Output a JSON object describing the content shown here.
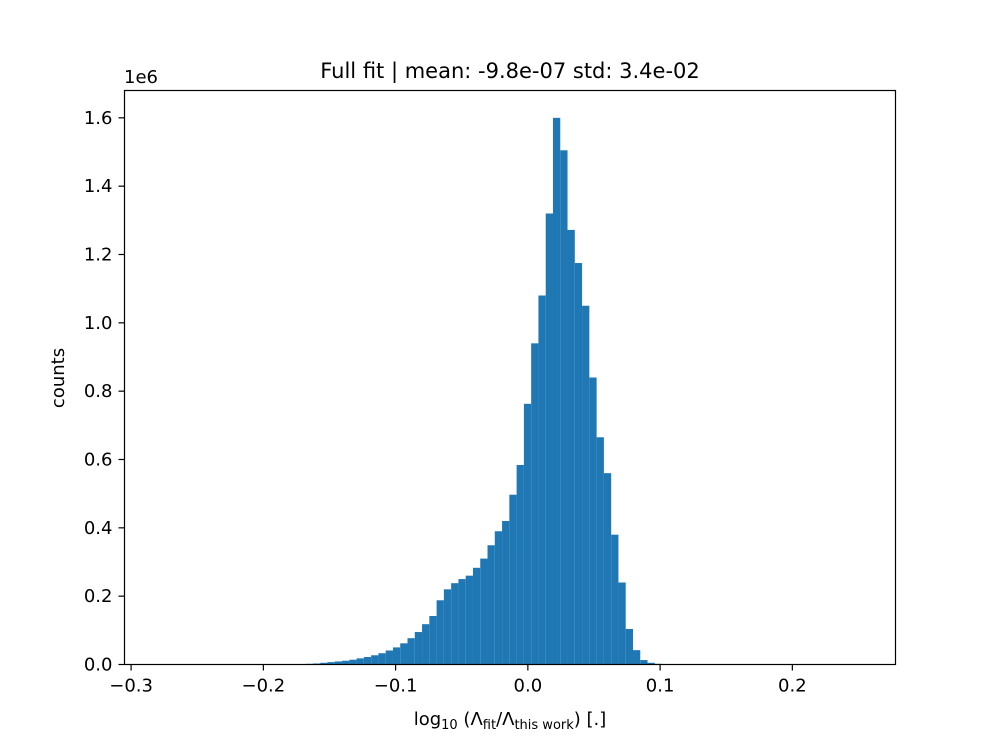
{
  "chart_data": {
    "type": "bar",
    "title": "Full fit | mean: -9.8e-07 std: 3.4e-02",
    "xlabel": {
      "base": "log",
      "base_sub": "10",
      "open": " (Λ",
      "sub1": "fit",
      "mid": "/Λ",
      "sub2": "this work",
      "close": ") [.]"
    },
    "ylabel": "counts",
    "y_multiplier": "1e6",
    "xlim": [
      -0.305,
      0.278
    ],
    "ylim": [
      0,
      1.68
    ],
    "xticks": [
      {
        "value": -0.3,
        "label": "−0.3"
      },
      {
        "value": -0.2,
        "label": "−0.2"
      },
      {
        "value": -0.1,
        "label": "−0.1"
      },
      {
        "value": 0.0,
        "label": "0.0"
      },
      {
        "value": 0.1,
        "label": "0.1"
      },
      {
        "value": 0.2,
        "label": "0.2"
      }
    ],
    "yticks": [
      {
        "value": 0.0,
        "label": "0.0"
      },
      {
        "value": 0.2,
        "label": "0.2"
      },
      {
        "value": 0.4,
        "label": "0.4"
      },
      {
        "value": 0.6,
        "label": "0.6"
      },
      {
        "value": 0.8,
        "label": "0.8"
      },
      {
        "value": 1.0,
        "label": "1.0"
      },
      {
        "value": 1.2,
        "label": "1.2"
      },
      {
        "value": 1.4,
        "label": "1.4"
      },
      {
        "value": 1.6,
        "label": "1.6"
      }
    ],
    "bar_color": "#1f77b4",
    "bin_edges_start": -0.3,
    "bin_width": 0.0055,
    "values": [
      0,
      0,
      0,
      0,
      0,
      0,
      0,
      0,
      0,
      0,
      0,
      0,
      0,
      0,
      0,
      0,
      0,
      0,
      0,
      0,
      0,
      0,
      0,
      0.001,
      0.002,
      0.003,
      0.005,
      0.007,
      0.009,
      0.011,
      0.014,
      0.018,
      0.022,
      0.027,
      0.033,
      0.041,
      0.05,
      0.062,
      0.077,
      0.095,
      0.118,
      0.142,
      0.188,
      0.22,
      0.238,
      0.25,
      0.26,
      0.283,
      0.31,
      0.349,
      0.39,
      0.42,
      0.497,
      0.584,
      0.763,
      0.94,
      1.08,
      1.32,
      1.6,
      1.505,
      1.272,
      1.175,
      1.05,
      0.84,
      0.665,
      0.56,
      0.38,
      0.24,
      0.104,
      0.042,
      0.013,
      0.005,
      0.002,
      0.001,
      0,
      0,
      0,
      0,
      0,
      0,
      0,
      0,
      0,
      0,
      0,
      0,
      0,
      0,
      0,
      0,
      0,
      0,
      0,
      0,
      0,
      0,
      0,
      0,
      0,
      0,
      0,
      0,
      0,
      0,
      0,
      0
    ]
  }
}
